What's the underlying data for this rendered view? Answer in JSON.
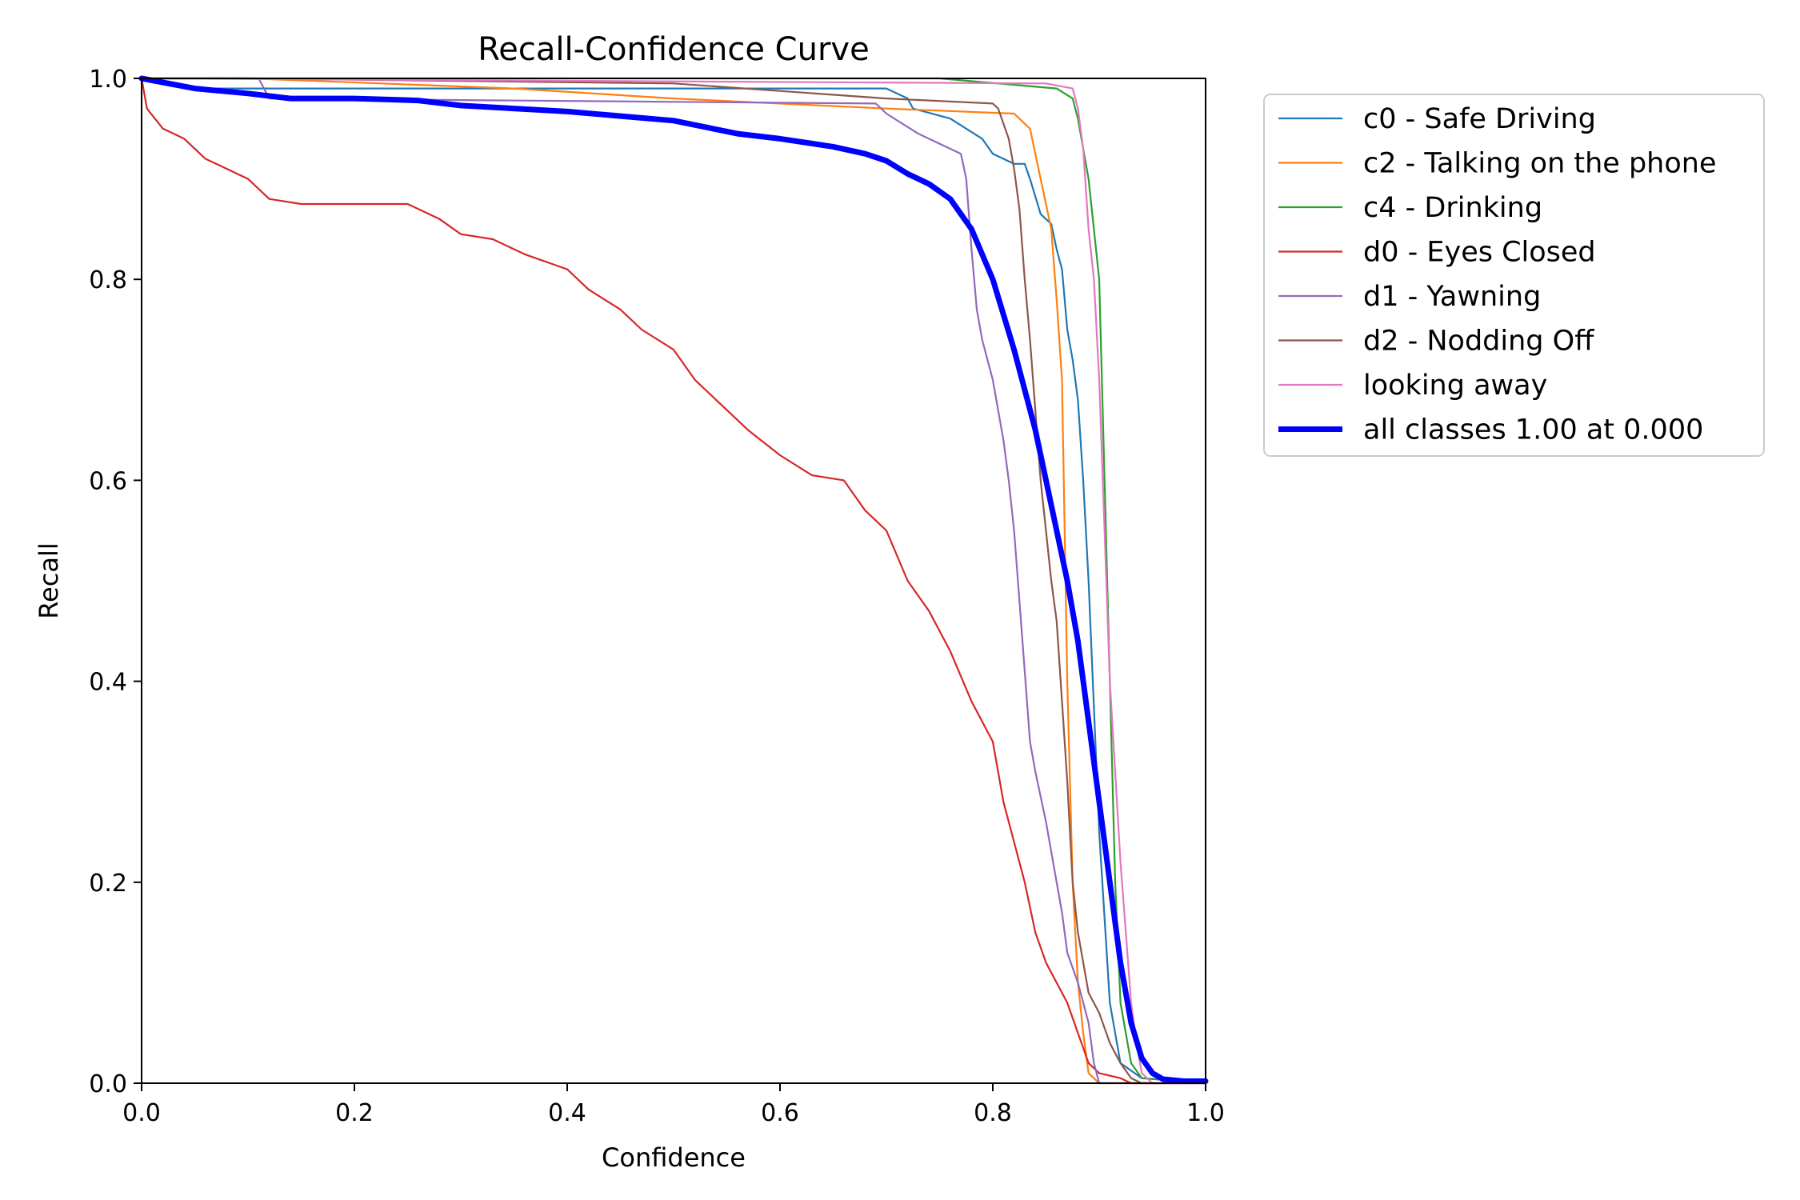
{
  "chart_data": {
    "type": "line",
    "title": "Recall-Confidence Curve",
    "xlabel": "Confidence",
    "ylabel": "Recall",
    "xlim": [
      0,
      1
    ],
    "ylim": [
      0,
      1
    ],
    "x_ticks": [
      "0.0",
      "0.2",
      "0.4",
      "0.6",
      "0.8",
      "1.0"
    ],
    "y_ticks": [
      "0.0",
      "0.2",
      "0.4",
      "0.6",
      "0.8",
      "1.0"
    ],
    "grid": false,
    "legend_position": "outside-top-right",
    "series": [
      {
        "name": "c0 - Safe Driving",
        "color": "#1f77b4",
        "line_width": "thin",
        "points": [
          [
            0,
            1.0
          ],
          [
            0.06,
            0.99
          ],
          [
            0.7,
            0.99
          ],
          [
            0.72,
            0.98
          ],
          [
            0.725,
            0.97
          ],
          [
            0.76,
            0.96
          ],
          [
            0.79,
            0.94
          ],
          [
            0.8,
            0.925
          ],
          [
            0.82,
            0.915
          ],
          [
            0.83,
            0.915
          ],
          [
            0.835,
            0.9
          ],
          [
            0.845,
            0.865
          ],
          [
            0.855,
            0.855
          ],
          [
            0.86,
            0.83
          ],
          [
            0.865,
            0.81
          ],
          [
            0.87,
            0.75
          ],
          [
            0.875,
            0.72
          ],
          [
            0.88,
            0.68
          ],
          [
            0.885,
            0.6
          ],
          [
            0.89,
            0.5
          ],
          [
            0.9,
            0.25
          ],
          [
            0.91,
            0.08
          ],
          [
            0.92,
            0.02
          ],
          [
            0.94,
            0.005
          ],
          [
            1.0,
            0.0
          ]
        ]
      },
      {
        "name": "c2 - Talking on the phone",
        "color": "#ff7f0e",
        "line_width": "thin",
        "points": [
          [
            0,
            1.0
          ],
          [
            0.1,
            1.0
          ],
          [
            0.35,
            0.99
          ],
          [
            0.5,
            0.98
          ],
          [
            0.7,
            0.97
          ],
          [
            0.82,
            0.965
          ],
          [
            0.835,
            0.95
          ],
          [
            0.845,
            0.9
          ],
          [
            0.855,
            0.85
          ],
          [
            0.86,
            0.78
          ],
          [
            0.865,
            0.7
          ],
          [
            0.87,
            0.4
          ],
          [
            0.875,
            0.2
          ],
          [
            0.88,
            0.1
          ],
          [
            0.885,
            0.05
          ],
          [
            0.89,
            0.01
          ],
          [
            0.9,
            0.0
          ],
          [
            1.0,
            0.0
          ]
        ]
      },
      {
        "name": "c4 - Drinking",
        "color": "#2ca02c",
        "line_width": "thin",
        "points": [
          [
            0,
            1.0
          ],
          [
            0.75,
            1.0
          ],
          [
            0.86,
            0.99
          ],
          [
            0.875,
            0.98
          ],
          [
            0.88,
            0.96
          ],
          [
            0.885,
            0.93
          ],
          [
            0.89,
            0.9
          ],
          [
            0.9,
            0.8
          ],
          [
            0.905,
            0.6
          ],
          [
            0.91,
            0.4
          ],
          [
            0.915,
            0.2
          ],
          [
            0.92,
            0.08
          ],
          [
            0.93,
            0.02
          ],
          [
            0.94,
            0.005
          ],
          [
            1.0,
            0.0
          ]
        ]
      },
      {
        "name": "d0 - Eyes Closed",
        "color": "#d62728",
        "line_width": "thin",
        "points": [
          [
            0,
            1.0
          ],
          [
            0.005,
            0.97
          ],
          [
            0.02,
            0.95
          ],
          [
            0.04,
            0.94
          ],
          [
            0.06,
            0.92
          ],
          [
            0.08,
            0.91
          ],
          [
            0.1,
            0.9
          ],
          [
            0.12,
            0.88
          ],
          [
            0.15,
            0.875
          ],
          [
            0.2,
            0.875
          ],
          [
            0.25,
            0.875
          ],
          [
            0.28,
            0.86
          ],
          [
            0.3,
            0.845
          ],
          [
            0.33,
            0.84
          ],
          [
            0.36,
            0.825
          ],
          [
            0.4,
            0.81
          ],
          [
            0.42,
            0.79
          ],
          [
            0.45,
            0.77
          ],
          [
            0.47,
            0.75
          ],
          [
            0.5,
            0.73
          ],
          [
            0.52,
            0.7
          ],
          [
            0.54,
            0.68
          ],
          [
            0.57,
            0.65
          ],
          [
            0.6,
            0.625
          ],
          [
            0.63,
            0.605
          ],
          [
            0.66,
            0.6
          ],
          [
            0.68,
            0.57
          ],
          [
            0.7,
            0.55
          ],
          [
            0.72,
            0.5
          ],
          [
            0.74,
            0.47
          ],
          [
            0.76,
            0.43
          ],
          [
            0.78,
            0.38
          ],
          [
            0.8,
            0.34
          ],
          [
            0.81,
            0.28
          ],
          [
            0.82,
            0.24
          ],
          [
            0.83,
            0.2
          ],
          [
            0.84,
            0.15
          ],
          [
            0.85,
            0.12
          ],
          [
            0.86,
            0.1
          ],
          [
            0.87,
            0.08
          ],
          [
            0.88,
            0.05
          ],
          [
            0.89,
            0.02
          ],
          [
            0.9,
            0.01
          ],
          [
            0.92,
            0.005
          ],
          [
            0.93,
            0.0
          ],
          [
            1.0,
            0.0
          ]
        ]
      },
      {
        "name": "d1 - Yawning",
        "color": "#9467bd",
        "line_width": "thin",
        "points": [
          [
            0,
            1.0
          ],
          [
            0.11,
            1.0
          ],
          [
            0.12,
            0.98
          ],
          [
            0.69,
            0.975
          ],
          [
            0.7,
            0.965
          ],
          [
            0.73,
            0.945
          ],
          [
            0.77,
            0.925
          ],
          [
            0.775,
            0.9
          ],
          [
            0.78,
            0.83
          ],
          [
            0.785,
            0.77
          ],
          [
            0.79,
            0.74
          ],
          [
            0.8,
            0.7
          ],
          [
            0.81,
            0.64
          ],
          [
            0.815,
            0.6
          ],
          [
            0.82,
            0.55
          ],
          [
            0.825,
            0.48
          ],
          [
            0.83,
            0.41
          ],
          [
            0.835,
            0.34
          ],
          [
            0.84,
            0.31
          ],
          [
            0.85,
            0.26
          ],
          [
            0.86,
            0.2
          ],
          [
            0.865,
            0.17
          ],
          [
            0.87,
            0.13
          ],
          [
            0.88,
            0.1
          ],
          [
            0.89,
            0.06
          ],
          [
            0.895,
            0.02
          ],
          [
            0.9,
            0.0
          ],
          [
            1.0,
            0.0
          ]
        ]
      },
      {
        "name": "d2 - Nodding Off",
        "color": "#8c564b",
        "line_width": "thin",
        "points": [
          [
            0,
            1.0
          ],
          [
            0.1,
            1.0
          ],
          [
            0.5,
            0.995
          ],
          [
            0.7,
            0.98
          ],
          [
            0.8,
            0.975
          ],
          [
            0.805,
            0.97
          ],
          [
            0.815,
            0.94
          ],
          [
            0.82,
            0.91
          ],
          [
            0.825,
            0.87
          ],
          [
            0.83,
            0.8
          ],
          [
            0.835,
            0.74
          ],
          [
            0.845,
            0.6
          ],
          [
            0.855,
            0.5
          ],
          [
            0.86,
            0.46
          ],
          [
            0.865,
            0.38
          ],
          [
            0.87,
            0.3
          ],
          [
            0.875,
            0.2
          ],
          [
            0.88,
            0.15
          ],
          [
            0.89,
            0.09
          ],
          [
            0.9,
            0.07
          ],
          [
            0.91,
            0.04
          ],
          [
            0.92,
            0.02
          ],
          [
            0.93,
            0.005
          ],
          [
            0.94,
            0.0
          ],
          [
            1.0,
            0.0
          ]
        ]
      },
      {
        "name": "looking away",
        "color": "#e377c2",
        "line_width": "thin",
        "points": [
          [
            0,
            1.0
          ],
          [
            0.85,
            0.995
          ],
          [
            0.875,
            0.99
          ],
          [
            0.88,
            0.97
          ],
          [
            0.885,
            0.93
          ],
          [
            0.89,
            0.85
          ],
          [
            0.895,
            0.8
          ],
          [
            0.9,
            0.7
          ],
          [
            0.905,
            0.55
          ],
          [
            0.91,
            0.4
          ],
          [
            0.92,
            0.22
          ],
          [
            0.925,
            0.15
          ],
          [
            0.93,
            0.08
          ],
          [
            0.935,
            0.04
          ],
          [
            0.94,
            0.01
          ],
          [
            0.95,
            0.0
          ],
          [
            1.0,
            0.0
          ]
        ]
      },
      {
        "name": "all classes 1.00 at 0.000",
        "color": "#0000ff",
        "line_width": "thick",
        "points": [
          [
            0,
            1.0
          ],
          [
            0.05,
            0.99
          ],
          [
            0.1,
            0.985
          ],
          [
            0.14,
            0.98
          ],
          [
            0.2,
            0.98
          ],
          [
            0.26,
            0.978
          ],
          [
            0.3,
            0.973
          ],
          [
            0.4,
            0.967
          ],
          [
            0.5,
            0.958
          ],
          [
            0.56,
            0.945
          ],
          [
            0.6,
            0.94
          ],
          [
            0.65,
            0.932
          ],
          [
            0.68,
            0.925
          ],
          [
            0.7,
            0.918
          ],
          [
            0.72,
            0.905
          ],
          [
            0.74,
            0.895
          ],
          [
            0.76,
            0.88
          ],
          [
            0.78,
            0.85
          ],
          [
            0.8,
            0.8
          ],
          [
            0.82,
            0.73
          ],
          [
            0.84,
            0.65
          ],
          [
            0.86,
            0.55
          ],
          [
            0.87,
            0.5
          ],
          [
            0.88,
            0.44
          ],
          [
            0.89,
            0.36
          ],
          [
            0.9,
            0.28
          ],
          [
            0.91,
            0.2
          ],
          [
            0.92,
            0.12
          ],
          [
            0.93,
            0.06
          ],
          [
            0.94,
            0.025
          ],
          [
            0.95,
            0.01
          ],
          [
            0.96,
            0.004
          ],
          [
            0.98,
            0.002
          ],
          [
            1.0,
            0.002
          ]
        ]
      }
    ]
  }
}
